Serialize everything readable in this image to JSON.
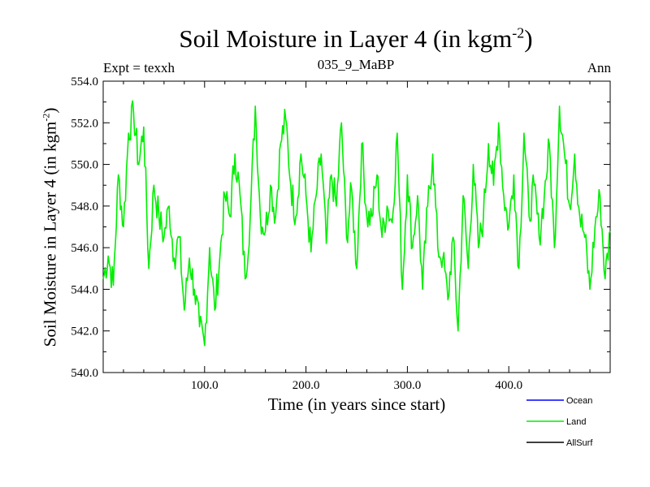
{
  "header": {
    "title_main": "Soil Moisture in Layer 4 (in kgm",
    "title_sup": "-2",
    "title_end": ")",
    "expt": "Expt = texxh",
    "subtitle": "035_9_MaBP",
    "season": "Ann"
  },
  "chart_data": {
    "type": "line",
    "title": "Soil Moisture in Layer 4 (in kgm-2)",
    "xlabel": "Time (in years since start)",
    "ylabel": "Soil Moisture in Layer 4 (in kgm-2)",
    "xlim": [
      0,
      500
    ],
    "ylim": [
      540,
      554
    ],
    "x_ticks": [
      100,
      200,
      300,
      400
    ],
    "x_tick_labels": [
      "100.0",
      "200.0",
      "300.0",
      "400.0"
    ],
    "y_ticks": [
      540,
      542,
      544,
      546,
      548,
      550,
      552,
      554
    ],
    "y_tick_labels": [
      "540.0",
      "542.0",
      "544.0",
      "546.0",
      "548.0",
      "550.0",
      "552.0",
      "554.0"
    ],
    "legend": [
      {
        "name": "Ocean",
        "color": "#0000ff"
      },
      {
        "name": "Land",
        "color": "#00ee00"
      },
      {
        "name": "AllSurf",
        "color": "#000000"
      }
    ],
    "legend_placement": "bottom-right",
    "series": [
      {
        "name": "Land",
        "color": "#00ee00",
        "x": [
          0,
          5,
          10,
          15,
          20,
          25,
          30,
          35,
          40,
          45,
          50,
          55,
          60,
          65,
          70,
          75,
          80,
          85,
          90,
          95,
          100,
          105,
          110,
          115,
          120,
          125,
          130,
          135,
          140,
          145,
          150,
          155,
          160,
          165,
          170,
          175,
          180,
          185,
          190,
          195,
          200,
          205,
          210,
          215,
          220,
          225,
          230,
          235,
          240,
          245,
          250,
          255,
          260,
          265,
          270,
          275,
          280,
          285,
          290,
          295,
          300,
          305,
          310,
          315,
          320,
          325,
          330,
          335,
          340,
          345,
          350,
          355,
          360,
          365,
          370,
          375,
          380,
          385,
          390,
          395,
          400,
          405,
          410,
          415,
          420,
          425,
          430,
          435,
          440,
          445,
          450,
          455,
          460,
          465,
          470,
          475,
          480,
          485,
          490,
          495,
          500
        ],
        "values": [
          544.5,
          545.6,
          544.2,
          549.5,
          547.0,
          551.5,
          552.5,
          550.0,
          551.8,
          545.0,
          549.0,
          547.5,
          546.5,
          548.0,
          545.5,
          546.5,
          543.0,
          545.5,
          544.0,
          542.2,
          541.3,
          546.0,
          543.0,
          545.5,
          548.5,
          547.5,
          550.5,
          548.5,
          544.5,
          547.5,
          552.8,
          547.5,
          546.8,
          549.0,
          547.5,
          551.0,
          552.2,
          549.0,
          547.5,
          550.5,
          548.5,
          545.8,
          548.5,
          550.5,
          546.2,
          549.5,
          548.0,
          552.0,
          546.5,
          548.8,
          545.0,
          551.0,
          547.5,
          547.5,
          549.5,
          546.5,
          548.0,
          547.2,
          551.5,
          544.0,
          549.5,
          546.0,
          548.5,
          544.0,
          548.0,
          550.5,
          546.0,
          545.5,
          543.5,
          546.5,
          542.0,
          548.5,
          545.0,
          550.0,
          546.0,
          547.5,
          551.0,
          549.0,
          552.0,
          548.5,
          547.0,
          549.5,
          545.0,
          551.5,
          547.5,
          549.0,
          546.5,
          548.5,
          551.0,
          546.0,
          552.8,
          550.5,
          548.0,
          550.5,
          547.5,
          546.5,
          544.0,
          547.0,
          548.5,
          544.5,
          546.8
        ]
      },
      {
        "name": "Ocean",
        "color": "#0000ff",
        "values": []
      },
      {
        "name": "AllSurf",
        "color": "#000000",
        "values": []
      }
    ]
  }
}
